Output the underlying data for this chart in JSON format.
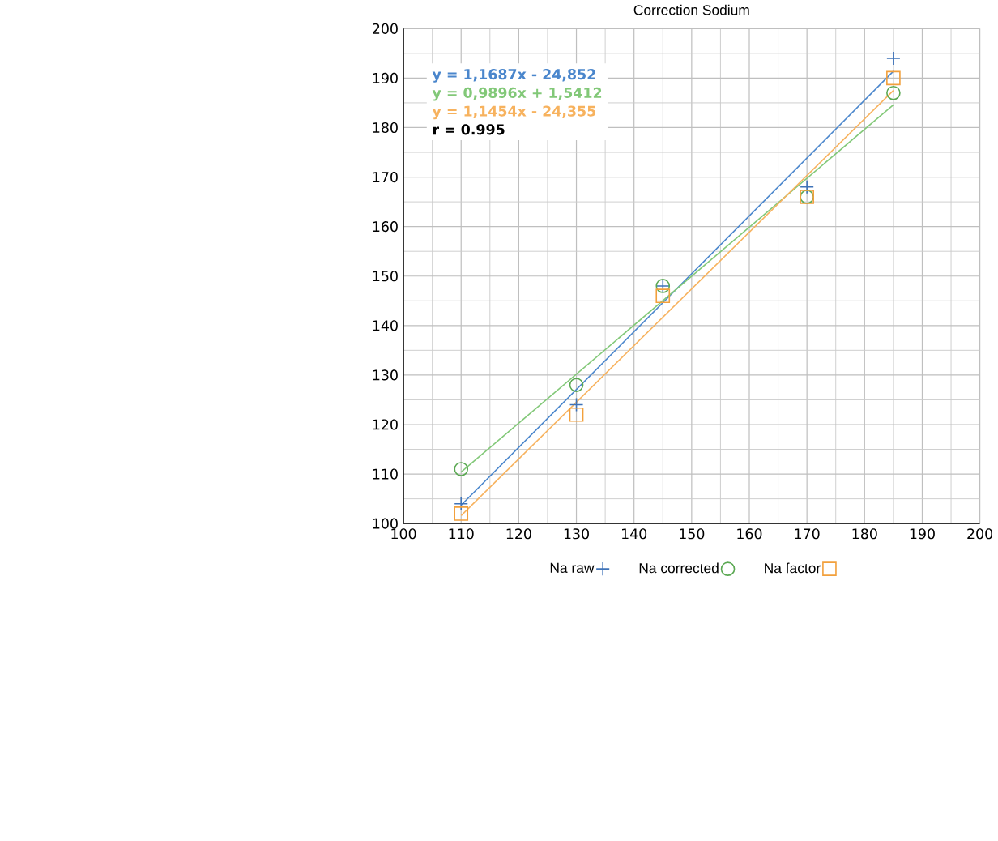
{
  "chart_data": {
    "type": "scatter",
    "title": "Correction Sodium",
    "xlim": [
      100,
      200
    ],
    "xticks": [
      100,
      110,
      120,
      130,
      140,
      150,
      160,
      170,
      180,
      190,
      200
    ],
    "ylim": [
      100,
      200
    ],
    "yticks": [
      100,
      110,
      120,
      130,
      140,
      150,
      160,
      170,
      180,
      190,
      200
    ],
    "grid": true,
    "legend": "bottom",
    "series": [
      {
        "name": "Na raw",
        "color": "#3f73b8",
        "marker": "cross",
        "x": [
          110,
          130,
          145,
          170,
          185
        ],
        "values": [
          104,
          124,
          148,
          168,
          194
        ]
      },
      {
        "name": "Na corrected",
        "color": "#5aa852",
        "marker": "circle",
        "x": [
          110,
          130,
          145,
          170,
          185
        ],
        "values": [
          111,
          128,
          148,
          166,
          187
        ]
      },
      {
        "name": "Na factor",
        "color": "#f2a03c",
        "marker": "square",
        "x": [
          110,
          130,
          145,
          170,
          185
        ],
        "values": [
          102,
          122,
          146,
          166,
          190
        ]
      },
      {
        "type": "line",
        "color": "#4a86cc",
        "marker": "none",
        "x": [
          110,
          185
        ],
        "values": [
          103.7,
          191.4
        ]
      },
      {
        "type": "line",
        "color": "#82c878",
        "marker": "none",
        "x": [
          110,
          185
        ],
        "values": [
          110.4,
          184.6
        ]
      },
      {
        "type": "line",
        "color": "#f7b25e",
        "marker": "none",
        "x": [
          110,
          185
        ],
        "values": [
          101.6,
          187.5
        ]
      }
    ],
    "annotations": [
      "y = 1,1687x - 24,852",
      "y = 0,9896x + 1,5412",
      "y = 1,1454x - 24,355",
      "r = 0.995"
    ]
  }
}
